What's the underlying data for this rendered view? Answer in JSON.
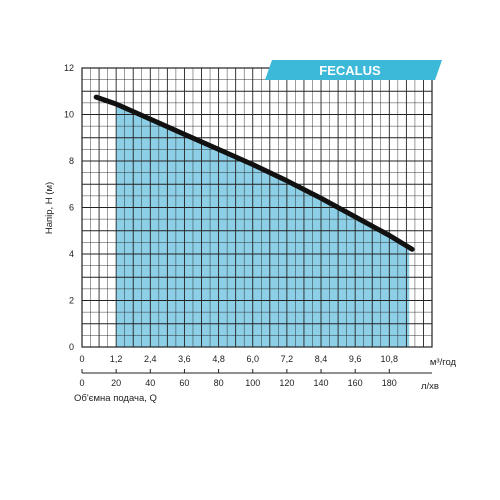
{
  "banner": {
    "label": "FECALUS",
    "color": "#3cb8d9"
  },
  "colors": {
    "fill": "#8dcfe6",
    "curve": "#111111",
    "grid": "#222222"
  },
  "chart_data": {
    "type": "area",
    "ylabel": "Напір, Н (м)",
    "x_top_unit": "м³/год",
    "x_bottom_unit": "л/хв",
    "x_bottom_title": "Об'ємна подача, Q",
    "y_ticks": [
      "0",
      "2",
      "4",
      "6",
      "8",
      "10",
      "12"
    ],
    "x_top_ticks": [
      "0",
      "1,2",
      "2,4",
      "3,6",
      "4,8",
      "6,0",
      "7,2",
      "8,4",
      "9,6",
      "10,8"
    ],
    "x_bottom_ticks": [
      "0",
      "20",
      "40",
      "60",
      "80",
      "100",
      "120",
      "140",
      "160",
      "180"
    ],
    "xlim_m3h": [
      0,
      12.3
    ],
    "ylim": [
      0,
      12
    ],
    "grid": true,
    "curve": {
      "x_m3h": [
        0.5,
        1.2,
        2.4,
        3.6,
        4.8,
        6.0,
        7.2,
        8.4,
        9.6,
        10.8,
        11.6
      ],
      "y_m": [
        10.75,
        10.45,
        9.8,
        9.15,
        8.5,
        7.85,
        7.15,
        6.4,
        5.6,
        4.8,
        4.2
      ]
    },
    "shaded_range_m3h": [
      1.2,
      11.5
    ]
  }
}
